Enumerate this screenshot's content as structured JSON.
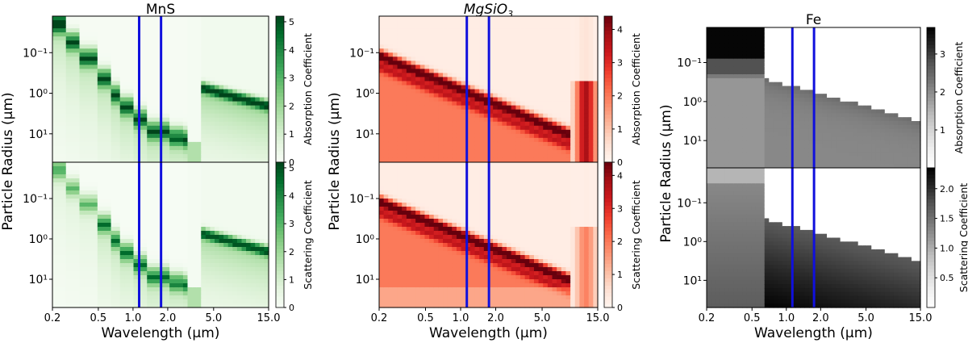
{
  "chart_data": [
    {
      "type": "heatmap",
      "title": "MnS",
      "title_italic": false,
      "colormap": "Greens",
      "xlabel": "Wavelength (μm)",
      "ylabel": "Particle Radius (μm)",
      "xlim": [
        0.2,
        15.0
      ],
      "ylim_log10": [
        -1.9,
        1.7
      ],
      "x_ticks": [
        "0.2",
        "0.5",
        "1.0",
        "2.0",
        "5.0",
        "15.0"
      ],
      "x_tick_values": [
        0.2,
        0.5,
        1.0,
        2.0,
        5.0,
        15.0
      ],
      "y_ticks": [
        "10⁻¹",
        "10⁰",
        "10¹"
      ],
      "y_tick_log": [
        -1,
        0,
        1
      ],
      "vertical_lines": [
        1.13,
        1.75
      ],
      "vertical_line_color": "#1010dd",
      "regime_edges_um": [
        0.2,
        0.27,
        0.35,
        0.48,
        0.63,
        0.8,
        1.0,
        1.35,
        2.0,
        2.7,
        3.6,
        15.0
      ],
      "panels": [
        {
          "label": "Absorption Coefficient",
          "cbar_ticks": [
            0,
            1,
            2,
            3,
            4,
            5
          ],
          "cbar_max": 5.2,
          "max_value": 5.0
        },
        {
          "label": "Scattering Coefficient",
          "cbar_ticks": [
            0,
            1,
            2,
            3,
            4,
            5
          ],
          "cbar_max": 5.2,
          "max_value": 5.0
        }
      ]
    },
    {
      "type": "heatmap",
      "title": "MgSiO",
      "title_sub": "3",
      "title_italic": true,
      "colormap": "Reds",
      "xlabel": "Wavelength (μm)",
      "ylabel": "Particle Radius (μm)",
      "xlim": [
        0.2,
        15.0
      ],
      "ylim_log10": [
        -1.9,
        1.7
      ],
      "x_ticks": [
        "0.2",
        "0.5",
        "1.0",
        "2.0",
        "5.0",
        "15.0"
      ],
      "x_tick_values": [
        0.2,
        0.5,
        1.0,
        2.0,
        5.0,
        15.0
      ],
      "y_ticks": [
        "10⁻¹",
        "10⁰",
        "10¹"
      ],
      "y_tick_log": [
        -1,
        0,
        1
      ],
      "vertical_lines": [
        1.13,
        1.75
      ],
      "vertical_line_color": "#1010dd",
      "resonance_feature_um": 9.5,
      "panels": [
        {
          "label": "Absorption Coefficient",
          "cbar_ticks": [
            0,
            1,
            2,
            3,
            4
          ],
          "cbar_max": 4.4,
          "max_value": 4.3
        },
        {
          "label": "Scattering Coefficient",
          "cbar_ticks": [
            0,
            1,
            2,
            3,
            4
          ],
          "cbar_max": 4.4,
          "max_value": 4.3
        }
      ]
    },
    {
      "type": "heatmap",
      "title": "Fe",
      "title_italic": false,
      "colormap": "Greys",
      "xlabel": "Wavelength (μm)",
      "ylabel": "Particle Radius (μm)",
      "xlim": [
        0.2,
        15.0
      ],
      "ylim_log10": [
        -1.9,
        1.7
      ],
      "x_ticks": [
        "0.2",
        "0.5",
        "1.0",
        "2.0",
        "5.0",
        "15.0"
      ],
      "x_tick_values": [
        0.2,
        0.5,
        1.0,
        2.0,
        5.0,
        15.0
      ],
      "y_ticks": [
        "10⁻¹",
        "10⁰",
        "10¹"
      ],
      "y_tick_log": [
        -1,
        0,
        1
      ],
      "vertical_lines": [
        1.13,
        1.75
      ],
      "vertical_line_color": "#1010dd",
      "gap_range_um": [
        0.62,
        0.9
      ],
      "panels": [
        {
          "label": "Absorption Coefficient",
          "cbar_ticks": [
            1,
            2,
            3
          ],
          "cbar_max": 3.7,
          "max_value": 3.5
        },
        {
          "label": "Scattering Coefficient",
          "cbar_ticks": [
            0.5,
            1.0,
            1.5,
            2.0
          ],
          "cbar_ticks_text": [
            "0.5",
            "1.0",
            "1.5",
            "2.0"
          ],
          "cbar_max": 2.35,
          "max_value": 2.25
        }
      ]
    }
  ]
}
